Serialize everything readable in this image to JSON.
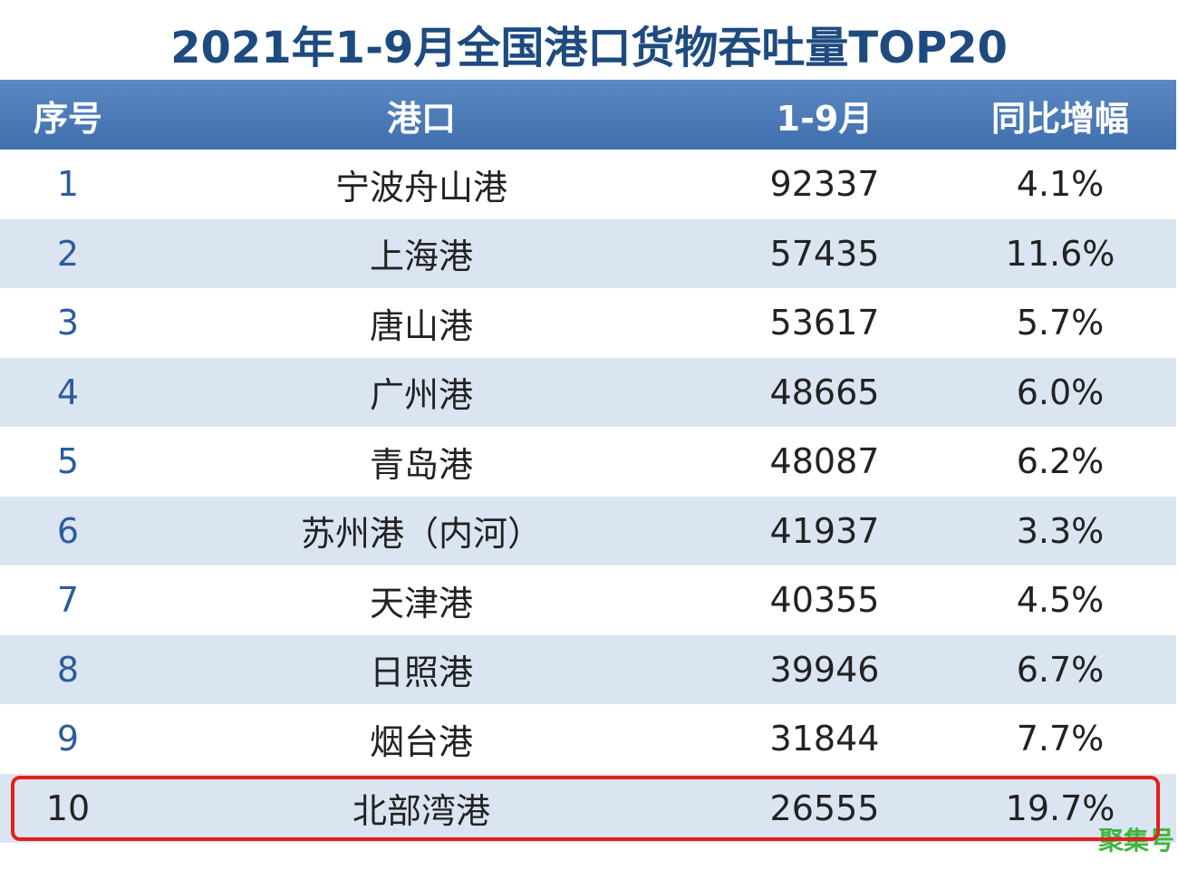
{
  "header": {
    "title": "2021年1-9月全国港口货物吞吐量TOP20"
  },
  "table": {
    "columns": [
      "序号",
      "港口",
      "1-9月",
      "同比增幅"
    ],
    "rows": [
      [
        "1",
        "宁波舟山港",
        "92337",
        "4.1%"
      ],
      [
        "2",
        "上海港",
        "57435",
        "11.6%"
      ],
      [
        "3",
        "唐山港",
        "53617",
        "5.7%"
      ],
      [
        "4",
        "广州港",
        "48665",
        "6.0%"
      ],
      [
        "5",
        "青岛港",
        "48087",
        "6.2%"
      ],
      [
        "6",
        "苏州港（内河）",
        "41937",
        "3.3%"
      ],
      [
        "7",
        "天津港",
        "40355",
        "4.5%"
      ],
      [
        "8",
        "日照港",
        "39946",
        "6.7%"
      ],
      [
        "9",
        "烟台港",
        "31844",
        "7.7%"
      ],
      [
        "10",
        "北部湾港",
        "26555",
        "19.7%"
      ]
    ],
    "highlighted_row": 9
  },
  "watermark": "聚集号"
}
